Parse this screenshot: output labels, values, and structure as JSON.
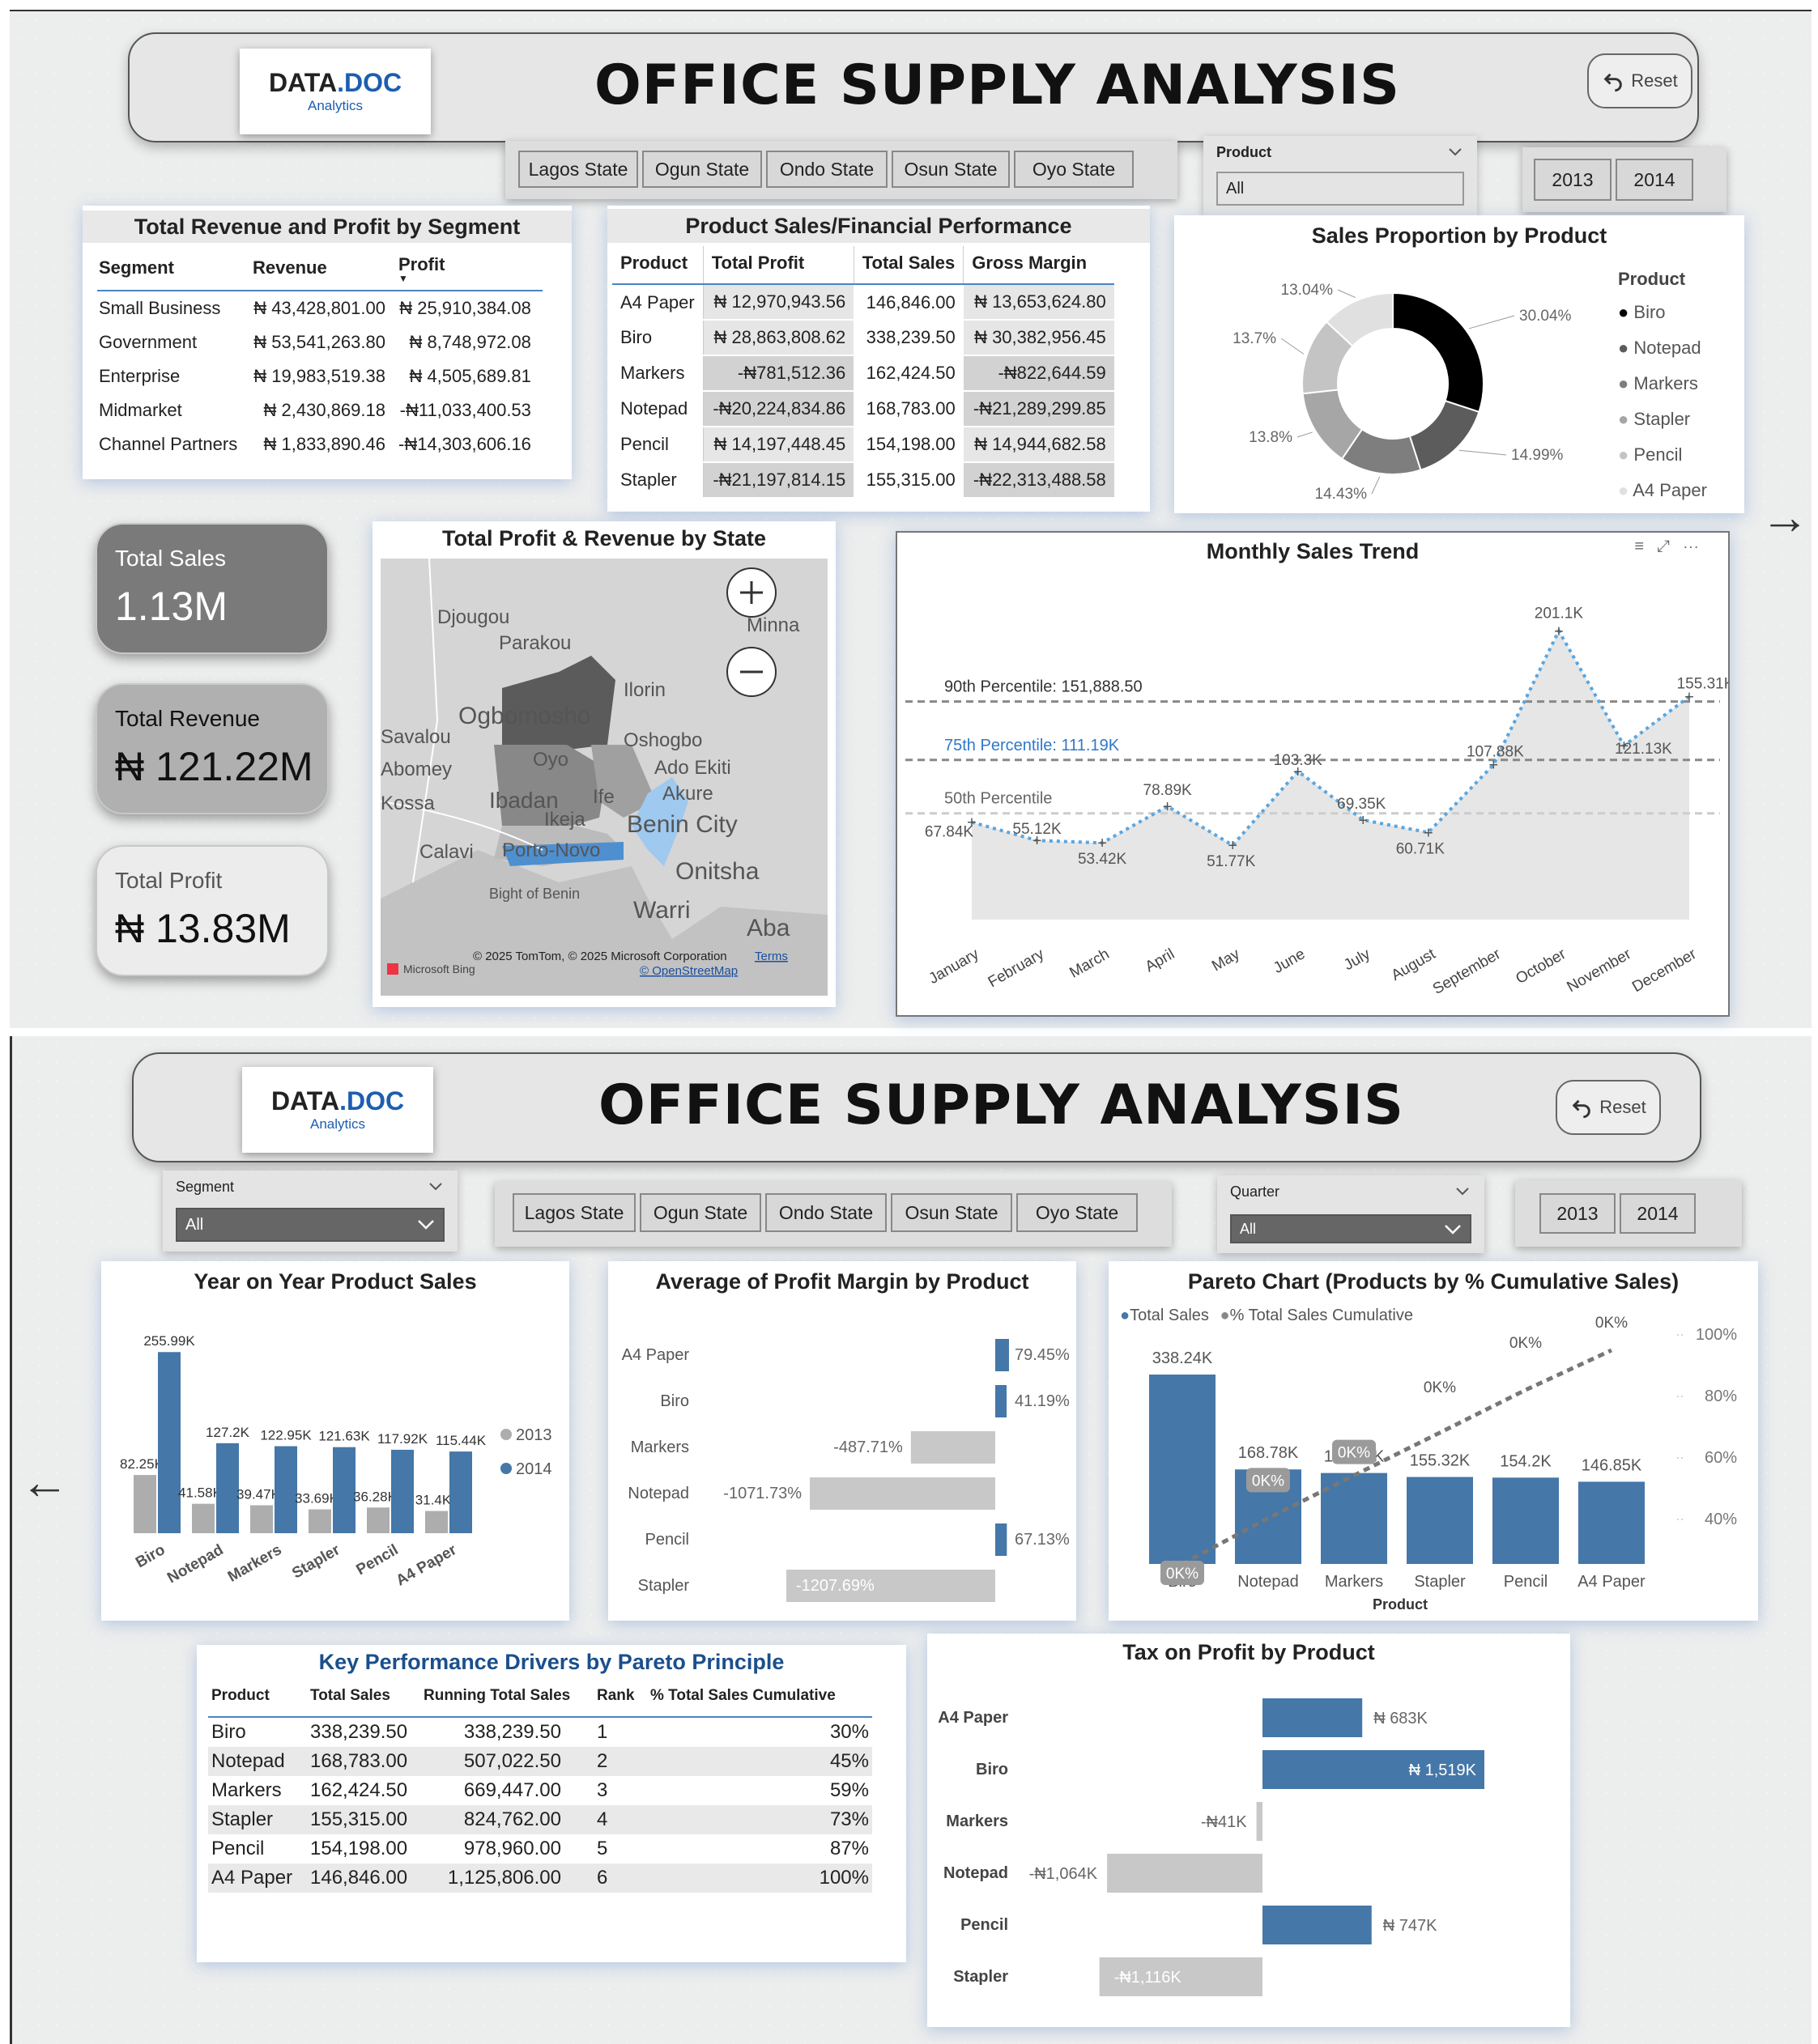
{
  "app": {
    "title": "OFFICE SUPPLY ANALYSIS",
    "logo_main": "DATA",
    "logo_dot": ".DOC",
    "logo_sub": "Analytics",
    "reset": "Reset"
  },
  "colors": {
    "accent": "#4577a8",
    "dark": "#777777",
    "grey": "#c8c8c8",
    "gradient_hi": "#59b0e6"
  },
  "states": [
    "Lagos State",
    "Ogun State",
    "Ondo State",
    "Osun State",
    "Oyo State"
  ],
  "years": [
    "2013",
    "2014"
  ],
  "page1": {
    "product_filter": {
      "label": "Product",
      "value": "All"
    },
    "segment_table": {
      "title": "Total Revenue and Profit by Segment",
      "columns": [
        "Segment",
        "Revenue",
        "Profit"
      ],
      "rows": [
        [
          "Small Business",
          "₦ 43,428,801.00",
          "₦ 25,910,384.08"
        ],
        [
          "Government",
          "₦ 53,541,263.80",
          "₦ 8,748,972.08"
        ],
        [
          "Enterprise",
          "₦ 19,983,519.38",
          "₦ 4,505,689.81"
        ],
        [
          "Midmarket",
          "₦ 2,430,869.18",
          "-₦11,033,400.53"
        ],
        [
          "Channel Partners",
          "₦ 1,833,890.46",
          "-₦14,303,606.16"
        ]
      ]
    },
    "product_table": {
      "title": "Product Sales/Financial Performance",
      "columns": [
        "Product",
        "Total Profit",
        "Total Sales",
        "Gross Margin"
      ],
      "rows": [
        [
          "A4 Paper",
          "₦ 12,970,943.56",
          "146,846.00",
          "₦ 13,653,624.80"
        ],
        [
          "Biro",
          "₦ 28,863,808.62",
          "338,239.50",
          "₦ 30,382,956.45"
        ],
        [
          "Markers",
          "-₦781,512.36",
          "162,424.50",
          "-₦822,644.59"
        ],
        [
          "Notepad",
          "-₦20,224,834.86",
          "168,783.00",
          "-₦21,289,299.85"
        ],
        [
          "Pencil",
          "₦ 14,197,448.45",
          "154,198.00",
          "₦ 14,944,682.58"
        ],
        [
          "Stapler",
          "-₦21,197,814.15",
          "155,315.00",
          "-₦22,313,488.58"
        ]
      ]
    },
    "donut": {
      "title": "Sales Proportion by Product",
      "legend_title": "Product"
    },
    "kpis": [
      {
        "label": "Total Sales",
        "value": "1.13M"
      },
      {
        "label": "Total Revenue",
        "value": "₦ 121.22M"
      },
      {
        "label": "Total Profit",
        "value": "₦ 13.83M"
      }
    ],
    "map": {
      "title": "Total Profit & Revenue by State",
      "attribution": "© 2025 TomTom, © 2025 Microsoft Corporation",
      "terms": "Terms",
      "osm": "© OpenStreetMap",
      "bing": "Microsoft Bing",
      "places": [
        "Djougou",
        "Parakou",
        "Ilorin",
        "Ogbomosho",
        "Oshogbo",
        "Oyo",
        "Ado Ekiti",
        "Ibadan",
        "Ife",
        "Akure",
        "Ikeja",
        "Benin City",
        "Calavi",
        "Porto-Novo",
        "Onitsha",
        "Bight of Benin",
        "Warri",
        "Aba",
        "Savalou",
        "Abomey",
        "Minna",
        "Kossa"
      ]
    },
    "trend": {
      "title": "Monthly Sales Trend",
      "p90": "90th Percentile: 151,888.50",
      "p75": "75th Percentile: 111.19K",
      "p50": "50th Percentile"
    }
  },
  "page2": {
    "segment_filter": {
      "label": "Segment",
      "value": "All"
    },
    "quarter_filter": {
      "label": "Quarter",
      "value": "All"
    },
    "yoy_title": "Year on Year Product Sales",
    "margin_title": "Average of Profit Margin by Product",
    "pareto_title": "Pareto Chart (Products by % Cumulative Sales)",
    "pareto_legend": [
      "Total Sales",
      "% Total Sales Cumulative"
    ],
    "pareto_xlabel": "Product",
    "kpd": {
      "title": "Key Performance Drivers by Pareto Principle",
      "columns": [
        "Product",
        "Total Sales",
        "Running Total Sales",
        "Rank",
        "% Total Sales Cumulative"
      ],
      "rows": [
        [
          "Biro",
          "338,239.50",
          "338,239.50",
          "1",
          "30%"
        ],
        [
          "Notepad",
          "168,783.00",
          "507,022.50",
          "2",
          "45%"
        ],
        [
          "Markers",
          "162,424.50",
          "669,447.00",
          "3",
          "59%"
        ],
        [
          "Stapler",
          "155,315.00",
          "824,762.00",
          "4",
          "73%"
        ],
        [
          "Pencil",
          "154,198.00",
          "978,960.00",
          "5",
          "87%"
        ],
        [
          "A4 Paper",
          "146,846.00",
          "1,125,806.00",
          "6",
          "100%"
        ]
      ]
    },
    "tax_title": "Tax on Profit by Product"
  },
  "chart_data": [
    {
      "id": "donut",
      "type": "pie",
      "title": "Sales Proportion by Product",
      "categories": [
        "Biro",
        "Notepad",
        "Markers",
        "Stapler",
        "Pencil",
        "A4 Paper"
      ],
      "values": [
        30.04,
        14.99,
        14.43,
        13.8,
        13.7,
        13.04
      ],
      "labels": [
        "30.04%",
        "14.99%",
        "14.43%",
        "13.8%",
        "13.7%",
        "13.04%"
      ],
      "colors": [
        "#000000",
        "#5c5c5c",
        "#7e7e7e",
        "#a6a6a6",
        "#c4c4c4",
        "#e0e0e0"
      ]
    },
    {
      "id": "trend",
      "type": "area",
      "title": "Monthly Sales Trend",
      "x": [
        "January",
        "February",
        "March",
        "April",
        "May",
        "June",
        "July",
        "August",
        "September",
        "October",
        "November",
        "December"
      ],
      "values": [
        67840,
        55120,
        53420,
        78890,
        51770,
        103300,
        69350,
        60710,
        107880,
        201100,
        121130,
        155310
      ],
      "labels": [
        "67.84K",
        "55.12K",
        "53.42K",
        "78.89K",
        "51.77K",
        "103.3K",
        "69.35K",
        "60.71K",
        "107.88K",
        "201.1K",
        "121.13K",
        "155.31K"
      ],
      "reference_lines": [
        {
          "name": "90th Percentile",
          "value": 151888.5
        },
        {
          "name": "75th Percentile",
          "value": 111190
        },
        {
          "name": "50th Percentile",
          "value": 74000
        }
      ],
      "ylim": [
        0,
        230000
      ]
    },
    {
      "id": "yoy",
      "type": "bar",
      "title": "Year on Year Product Sales",
      "categories": [
        "Biro",
        "Notepad",
        "Markers",
        "Stapler",
        "Pencil",
        "A4 Paper"
      ],
      "series": [
        {
          "name": "2013",
          "values": [
            82250,
            41580,
            39470,
            33690,
            36280,
            31400
          ],
          "labels": [
            "82.25K",
            "41.58K",
            "39.47K",
            "33.69K",
            "36.28K",
            "31.4K"
          ]
        },
        {
          "name": "2014",
          "values": [
            255990,
            127200,
            122950,
            121630,
            117920,
            115440
          ],
          "labels": [
            "255.99K",
            "127.2K",
            "122.95K",
            "121.63K",
            "117.92K",
            "115.44K"
          ]
        }
      ],
      "ylim": [
        0,
        270000
      ]
    },
    {
      "id": "margin",
      "type": "bar",
      "title": "Average of Profit Margin by Product",
      "categories": [
        "A4 Paper",
        "Biro",
        "Markers",
        "Notepad",
        "Pencil",
        "Stapler"
      ],
      "values": [
        79.45,
        41.19,
        -487.71,
        -1071.73,
        67.13,
        -1207.69
      ],
      "labels": [
        "79.45%",
        "41.19%",
        "-487.71%",
        "-1071.73%",
        "67.13%",
        "-1207.69%"
      ]
    },
    {
      "id": "pareto",
      "type": "bar",
      "title": "Pareto Chart (Products by % Cumulative Sales)",
      "xlabel": "Product",
      "categories": [
        "Biro",
        "Notepad",
        "Markers",
        "Stapler",
        "Pencil",
        "A4 Paper"
      ],
      "series": [
        {
          "name": "Total Sales",
          "values": [
            338240,
            168780,
            162420,
            155320,
            154200,
            146850
          ],
          "labels": [
            "338.24K",
            "168.78K",
            "162.42K",
            "155.32K",
            "154.2K",
            "146.85K"
          ]
        },
        {
          "name": "% Total Sales Cumulative",
          "values": [
            30,
            45,
            59,
            73,
            87,
            100
          ],
          "labels": [
            "0K%",
            "0K%",
            "0K%",
            "0K%",
            "0K%",
            "0K%"
          ]
        }
      ],
      "y2_ticks": [
        "40%",
        "60%",
        "80%",
        "100%"
      ]
    },
    {
      "id": "tax",
      "type": "bar",
      "title": "Tax on Profit by Product",
      "categories": [
        "A4 Paper",
        "Biro",
        "Markers",
        "Notepad",
        "Pencil",
        "Stapler"
      ],
      "values": [
        683,
        1519,
        -41,
        -1064,
        747,
        -1116
      ],
      "labels": [
        "₦ 683K",
        "₦ 1,519K",
        "-₦41K",
        "-₦1,064K",
        "₦ 747K",
        "-₦1,116K"
      ]
    }
  ]
}
